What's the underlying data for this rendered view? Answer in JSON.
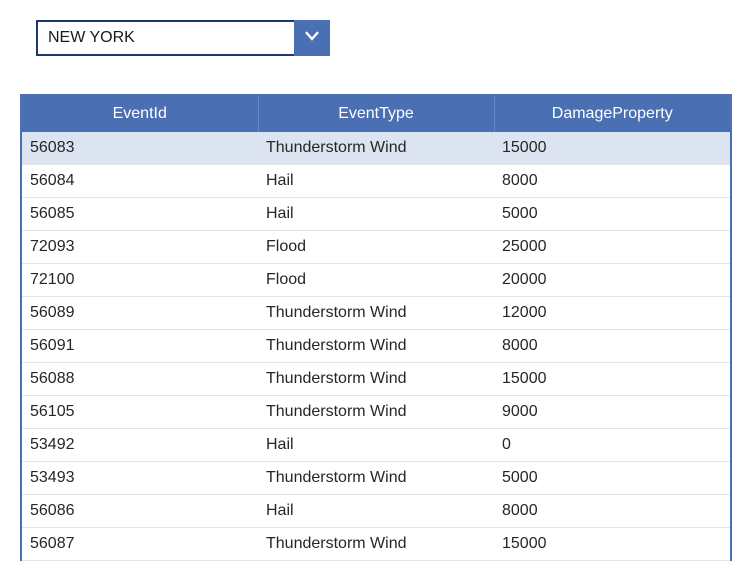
{
  "dropdown": {
    "selected": "NEW YORK",
    "border_color": "#1a3a6e",
    "button_color": "#4a6fb3",
    "chevron_color": "#ffffff"
  },
  "table": {
    "header_bg": "#4a6fb3",
    "header_text_color": "#ffffff",
    "selected_row_bg": "#dce4f2",
    "row_border_color": "#e5e5e5",
    "columns": [
      "EventId",
      "EventType",
      "DamageProperty"
    ],
    "selected_index": 0,
    "rows": [
      [
        "56083",
        "Thunderstorm Wind",
        "15000"
      ],
      [
        "56084",
        "Hail",
        "8000"
      ],
      [
        "56085",
        "Hail",
        "5000"
      ],
      [
        "72093",
        "Flood",
        "25000"
      ],
      [
        "72100",
        "Flood",
        "20000"
      ],
      [
        "56089",
        "Thunderstorm Wind",
        "12000"
      ],
      [
        "56091",
        "Thunderstorm Wind",
        "8000"
      ],
      [
        "56088",
        "Thunderstorm Wind",
        "15000"
      ],
      [
        "56105",
        "Thunderstorm Wind",
        "9000"
      ],
      [
        "53492",
        "Hail",
        "0"
      ],
      [
        "53493",
        "Thunderstorm Wind",
        "5000"
      ],
      [
        "56086",
        "Hail",
        "8000"
      ],
      [
        "56087",
        "Thunderstorm Wind",
        "15000"
      ]
    ]
  }
}
